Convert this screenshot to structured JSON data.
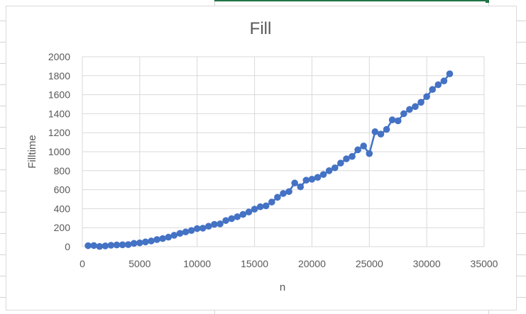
{
  "colors": {
    "series": "#4472C4",
    "grid": "#d9d9d9",
    "text": "#595959",
    "cell_selection": "#217346"
  },
  "chart_data": {
    "type": "scatter",
    "title": "Fill",
    "xlabel": "n",
    "ylabel": "Filltime",
    "xlim": [
      0,
      35000
    ],
    "ylim": [
      0,
      2000
    ],
    "x_ticks": [
      0,
      5000,
      10000,
      15000,
      20000,
      25000,
      30000,
      35000
    ],
    "y_ticks": [
      0,
      200,
      400,
      600,
      800,
      1000,
      1200,
      1400,
      1600,
      1800,
      2000
    ],
    "grid": true,
    "legend": "none",
    "markers": "circle",
    "line": "straight",
    "series": [
      {
        "x": [
          500,
          1000,
          1500,
          2000,
          2500,
          3000,
          3500,
          4000,
          4500,
          5000,
          5500,
          6000,
          6500,
          7000,
          7500,
          8000,
          8500,
          9000,
          9500,
          10000,
          10500,
          11000,
          11500,
          12000,
          12500,
          13000,
          13500,
          14000,
          14500,
          15000,
          15500,
          16000,
          16500,
          17000,
          17500,
          18000,
          18500,
          19000,
          19500,
          20000,
          20500,
          21000,
          21500,
          22000,
          22500,
          23000,
          23500,
          24000,
          24500,
          25000,
          25500,
          26000,
          26500,
          27000,
          27500,
          28000,
          28500,
          29000,
          29500,
          30000,
          30500,
          31000,
          31500,
          32000
        ],
        "y": [
          10,
          12,
          2,
          8,
          15,
          18,
          20,
          22,
          35,
          40,
          50,
          60,
          75,
          85,
          100,
          120,
          140,
          155,
          170,
          190,
          195,
          215,
          235,
          240,
          275,
          295,
          315,
          340,
          365,
          395,
          420,
          430,
          470,
          520,
          560,
          580,
          670,
          630,
          700,
          710,
          730,
          760,
          800,
          830,
          880,
          925,
          950,
          1020,
          1060,
          980,
          1210,
          1185,
          1235,
          1335,
          1325,
          1400,
          1445,
          1475,
          1520,
          1580,
          1655,
          1705,
          1745,
          1820
        ]
      }
    ]
  }
}
